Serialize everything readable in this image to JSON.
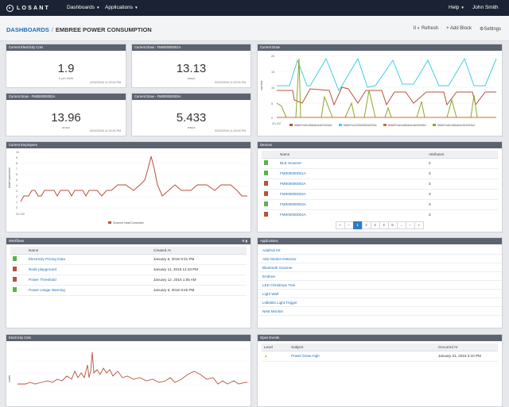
{
  "topbar": {
    "logo": "LOSANT",
    "nav": [
      "Dashboards",
      "Applications"
    ],
    "help": "Help",
    "user": "John Smith"
  },
  "breadcrumb": {
    "root": "DASHBOARDS",
    "separator": "/",
    "current": "EMBREE POWER CONSUMPTION"
  },
  "actions": {
    "pause": "II",
    "refresh": "Refresh",
    "add_block": "+ Add Block",
    "settings": "Settings"
  },
  "gauges": [
    {
      "title": "Current Electricity Cost",
      "value": "1.9",
      "unit": "¢ per kWh",
      "time": "02/02/2016 11:20:00 PM"
    },
    {
      "title": "Current Draw - FM000000001A",
      "value": "13.13",
      "unit": "amps",
      "time": "02/02/2016 11:20:00 PM"
    },
    {
      "title": "Current Draw - FM000000002A",
      "value": "13.96",
      "unit": "amps",
      "time": "02/02/2016 11:20:00 PM"
    },
    {
      "title": "Current Draw - FM000000003A",
      "value": "5.433",
      "unit": "amps",
      "time": "02/02/2016 11:20:00 PM"
    }
  ],
  "current_draw_chart": {
    "title": "Current Draw",
    "ylabel": "current",
    "yticks": [
      "20",
      "15",
      "10",
      "5",
      "0"
    ],
    "xstart": "2/1  2/2",
    "legend": [
      {
        "name": "56687ea0cd66ab4c6e00e5a2",
        "color": "#b8513d"
      },
      {
        "name": "56687ea1f2f2d06f2a02f2a",
        "color": "#3fd0e0"
      },
      {
        "name": "5668f7ea0cd66ab4c6e00e5b2",
        "color": "#d56a2a"
      },
      {
        "name": "56687ea0cd66ab4c6e00e5c2",
        "color": "#8aa82a"
      }
    ]
  },
  "employees_chart": {
    "title": "Current Employees",
    "ylabel": "totalConnected",
    "yticks": [
      "10",
      "9",
      "8",
      "7",
      "6",
      "5",
      "4",
      "3",
      "2",
      "1",
      "0"
    ],
    "xstart": "2/1  2/2",
    "legend": "Scanner totalConnected",
    "color": "#b8513d"
  },
  "devices": {
    "title": "Devices",
    "headers": [
      "Name",
      "Attributes"
    ],
    "rows": [
      {
        "name": "BLE Scanner",
        "attrs": "2",
        "status": "green"
      },
      {
        "name": "FM000000001A",
        "attrs": "3",
        "status": "green"
      },
      {
        "name": "FM000000002A",
        "attrs": "3",
        "status": "red"
      },
      {
        "name": "FM000000002A",
        "attrs": "3",
        "status": "red"
      },
      {
        "name": "FM000000003A",
        "attrs": "3",
        "status": "green"
      },
      {
        "name": "FM000000004A",
        "attrs": "3",
        "status": "red"
      }
    ],
    "pager": [
      "«",
      "‹",
      "1",
      "2",
      "3",
      "4",
      "5",
      "...",
      "›",
      "»"
    ]
  },
  "workflows": {
    "title": "Workflows",
    "headers": [
      "Name",
      "Created At"
    ],
    "rows": [
      {
        "name": "Electricity Pricing Data",
        "created": "January 6, 2016 9:31 PM",
        "status": "green"
      },
      {
        "name": "Node playground",
        "created": "January 11, 2016 12:43 PM",
        "status": "red"
      },
      {
        "name": "Power Threshold",
        "created": "January 12, 2016 1:55 AM",
        "status": "red"
      },
      {
        "name": "Power Usage Warning",
        "created": "January 6, 2016 9:25 PM",
        "status": "green"
      }
    ]
  },
  "applications": {
    "title": "Applications",
    "items": [
      "Adafruit Kit",
      "Attic Motion Detector",
      "Bluetooth Scanner",
      "Embree",
      "LED Christmas Tree",
      "Light Wall",
      "Littlebits Light Trigger",
      "Nest Monitor"
    ]
  },
  "cost_chart": {
    "title": "Electricity Cost",
    "ylabel": "cents",
    "color": "#b8513d"
  },
  "events": {
    "title": "Open Events",
    "headers": [
      "Level",
      "Subject",
      "Occurred At"
    ],
    "rows": [
      {
        "subject": "Power Draw High",
        "occurred": "January 21, 2016 3:10 PM"
      }
    ]
  }
}
